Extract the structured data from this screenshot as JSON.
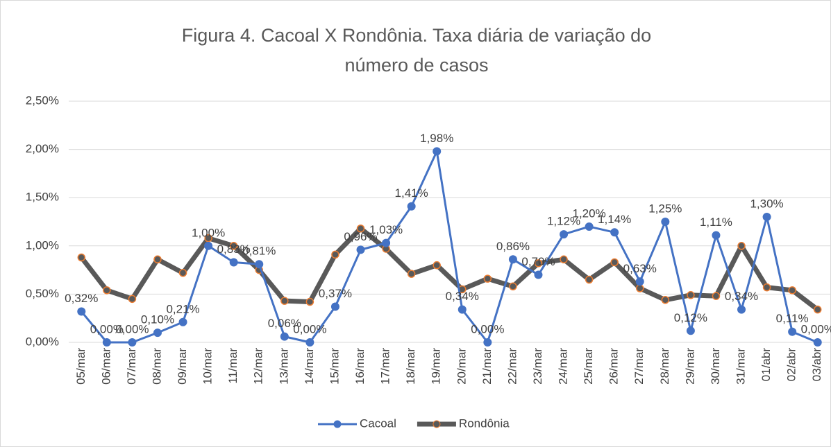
{
  "chart_data": {
    "type": "line",
    "title": "Figura 4. Cacoal X Rondônia. Taxa diária de variação do número de casos",
    "categories": [
      "05/mar",
      "06/mar",
      "07/mar",
      "08/mar",
      "09/mar",
      "10/mar",
      "11/mar",
      "12/mar",
      "13/mar",
      "14/mar",
      "15/mar",
      "16/mar",
      "17/mar",
      "18/mar",
      "19/mar",
      "20/mar",
      "21/mar",
      "22/mar",
      "23/mar",
      "24/mar",
      "25/mar",
      "26/mar",
      "27/mar",
      "28/mar",
      "29/mar",
      "30/mar",
      "31/mar",
      "01/abr",
      "02/abr",
      "03/abr"
    ],
    "series": [
      {
        "name": "Cacoal",
        "color": "#4472c4",
        "values": [
          0.32,
          0,
          0,
          0.1,
          0.21,
          1.0,
          0.83,
          0.81,
          0.06,
          0,
          0.37,
          0.96,
          1.03,
          1.41,
          1.98,
          0.34,
          0,
          0.86,
          0.7,
          1.12,
          1.2,
          1.14,
          0.63,
          1.25,
          0.12,
          1.11,
          0.34,
          1.3,
          0.11,
          0
        ],
        "value_labels": [
          "0,32%",
          "0,00%",
          "0,00%",
          "0,10%",
          "0,21%",
          "1,00%",
          "0,83%",
          "0,81%",
          "0,06%",
          "0,00%",
          "0,37%",
          "0,96%",
          "1,03%",
          "1,41%",
          "1,98%",
          "0,34%",
          "0,00%",
          "0,86%",
          "0,70%",
          "1,12%",
          "1,20%",
          "1,14%",
          "0,63%",
          "1,25%",
          "0,12%",
          "1,11%",
          "0,34%",
          "1,30%",
          "0,11%",
          "0,00%"
        ]
      },
      {
        "name": "Rondônia",
        "color": "#595959",
        "values": [
          0.88,
          0.54,
          0.45,
          0.86,
          0.72,
          1.08,
          1.0,
          0.75,
          0.43,
          0.42,
          0.91,
          1.18,
          0.97,
          0.71,
          0.8,
          0.55,
          0.66,
          0.58,
          0.82,
          0.86,
          0.65,
          0.83,
          0.56,
          0.44,
          0.49,
          0.48,
          1.0,
          0.57,
          0.54,
          0.34
        ]
      }
    ],
    "ylim": [
      0,
      2.5
    ],
    "yticks": [
      {
        "value": 0,
        "label": "0,00%"
      },
      {
        "value": 0.5,
        "label": "0,50%"
      },
      {
        "value": 1,
        "label": "1,00%"
      },
      {
        "value": 1.5,
        "label": "1,50%"
      },
      {
        "value": 2,
        "label": "2,00%"
      },
      {
        "value": 2.5,
        "label": "2,50%"
      }
    ],
    "grid": true,
    "legend": "bottom"
  }
}
